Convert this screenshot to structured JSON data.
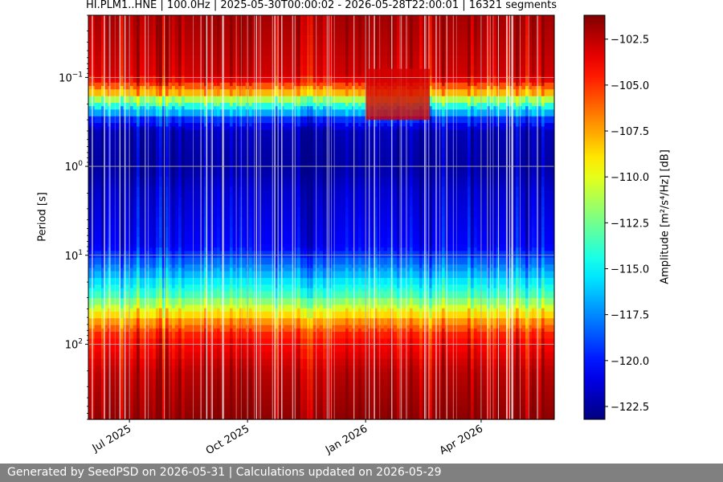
{
  "chart_data": {
    "type": "heatmap",
    "title": "HI.PLM1..HNE | 100.0Hz | 2025-05-30T00:00:02 - 2026-05-28T22:00:01 | 16321 segments",
    "ylabel": "Period [s]",
    "colorbar_label": "Amplitude [m²/s⁴/Hz] [dB]",
    "x_range": [
      "2025-05-30",
      "2026-05-28"
    ],
    "x_ticks": [
      {
        "date": "2025-07-01",
        "label": "Jul 2025"
      },
      {
        "date": "2025-10-01",
        "label": "Oct 2025"
      },
      {
        "date": "2026-01-01",
        "label": "Jan 2026"
      },
      {
        "date": "2026-04-01",
        "label": "Apr 2026"
      }
    ],
    "y_scale": "log",
    "y_inverted": true,
    "y_range_seconds": [
      0.02,
      700
    ],
    "y_ticks": [
      {
        "value": 0.1,
        "base": "10",
        "exp": "−1"
      },
      {
        "value": 1,
        "base": "10",
        "exp": "0"
      },
      {
        "value": 10,
        "base": "10",
        "exp": "1"
      },
      {
        "value": 100,
        "base": "10",
        "exp": "2"
      }
    ],
    "colormap": "jet",
    "color_range_db": [
      -123.2,
      -101.2
    ],
    "colorbar_ticks": [
      -102.5,
      -105.0,
      -107.5,
      -110.0,
      -112.5,
      -115.0,
      -117.5,
      -120.0,
      -122.5
    ],
    "colorbar_tick_labels": [
      "−102.5",
      "−105.0",
      "−107.5",
      "−110.0",
      "−112.5",
      "−115.0",
      "−117.5",
      "−120.0",
      "−122.5"
    ],
    "grid": true,
    "profile_by_period": [
      {
        "period": 0.02,
        "db": -102.0
      },
      {
        "period": 0.1,
        "db": -103.0
      },
      {
        "period": 0.15,
        "db": -108.0
      },
      {
        "period": 0.2,
        "db": -113.5
      },
      {
        "period": 0.3,
        "db": -119.5
      },
      {
        "period": 0.4,
        "db": -122.0
      },
      {
        "period": 1.0,
        "db": -122.5
      },
      {
        "period": 2.0,
        "db": -121.5
      },
      {
        "period": 8.0,
        "db": -120.5
      },
      {
        "period": 15.0,
        "db": -117.0
      },
      {
        "period": 30.0,
        "db": -113.0
      },
      {
        "period": 50.0,
        "db": -108.0
      },
      {
        "period": 80.0,
        "db": -104.5
      },
      {
        "period": 200.0,
        "db": -102.5
      },
      {
        "period": 700.0,
        "db": -101.5
      }
    ],
    "notable_features": [
      {
        "start": "2026-01-01",
        "end": "2026-02-20",
        "period_range": [
          0.08,
          0.3
        ],
        "db": -103.0,
        "note": "short-period band extends to longer periods"
      }
    ]
  },
  "footer": {
    "text": "Generated by SeedPSD on 2026-05-31 | Calculations updated on 2026-05-29",
    "background": "#808080"
  }
}
